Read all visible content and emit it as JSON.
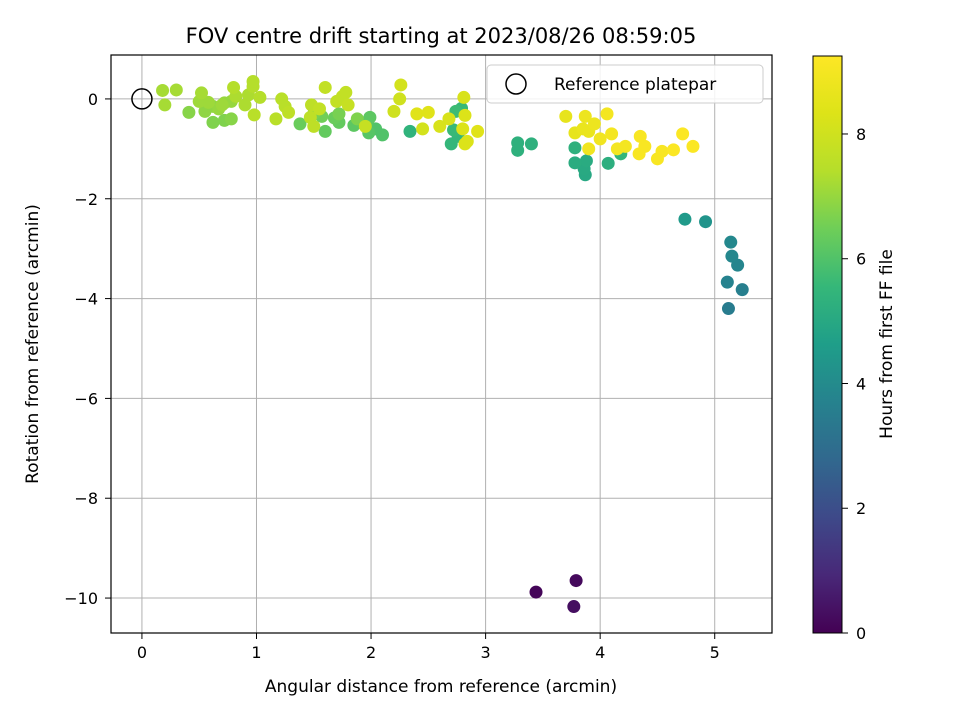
{
  "chart_data": {
    "type": "scatter",
    "title": "FOV centre drift starting at 2023/08/26 08:59:05",
    "xlabel": "Angular distance from reference (arcmin)",
    "ylabel": "Rotation from reference (arcmin)",
    "xlim": [
      -0.27,
      5.5
    ],
    "ylim": [
      -10.7,
      0.88
    ],
    "xticks": [
      0,
      1,
      2,
      3,
      4,
      5
    ],
    "yticks": [
      0,
      -2,
      -4,
      -6,
      -8,
      -10
    ],
    "xtick_labels": [
      "0",
      "1",
      "2",
      "3",
      "4",
      "5"
    ],
    "ytick_labels": [
      "0",
      "−2",
      "−4",
      "−6",
      "−8",
      "−10"
    ],
    "grid": true,
    "colormap": "viridis",
    "legend": {
      "position": "top-right",
      "entries": [
        "Reference platepar"
      ]
    },
    "reference_point": {
      "x": 0,
      "y": 0,
      "label": "Reference platepar"
    },
    "colorbar": {
      "label": "Hours from first FF file",
      "range": [
        0,
        9.25
      ],
      "ticks": [
        0,
        2,
        4,
        6,
        8
      ],
      "tick_labels": [
        "0",
        "2",
        "4",
        "6",
        "8"
      ]
    },
    "points": [
      {
        "x": 3.44,
        "y": -9.88,
        "c": 0.1
      },
      {
        "x": 3.79,
        "y": -9.65,
        "c": 0.2
      },
      {
        "x": 3.77,
        "y": -10.17,
        "c": 0.3
      },
      {
        "x": 5.12,
        "y": -4.2,
        "c": 3.5
      },
      {
        "x": 5.24,
        "y": -3.82,
        "c": 3.6
      },
      {
        "x": 5.11,
        "y": -3.67,
        "c": 3.7
      },
      {
        "x": 5.2,
        "y": -3.33,
        "c": 3.8
      },
      {
        "x": 5.15,
        "y": -3.15,
        "c": 3.85
      },
      {
        "x": 5.14,
        "y": -2.87,
        "c": 3.9
      },
      {
        "x": 4.92,
        "y": -2.46,
        "c": 4.3
      },
      {
        "x": 4.74,
        "y": -2.41,
        "c": 4.5
      },
      {
        "x": 3.87,
        "y": -1.52,
        "c": 5.0
      },
      {
        "x": 3.86,
        "y": -1.4,
        "c": 5.05
      },
      {
        "x": 3.88,
        "y": -1.24,
        "c": 5.1
      },
      {
        "x": 3.78,
        "y": -1.28,
        "c": 5.15
      },
      {
        "x": 4.07,
        "y": -1.29,
        "c": 5.2
      },
      {
        "x": 3.78,
        "y": -0.98,
        "c": 5.3
      },
      {
        "x": 3.28,
        "y": -0.88,
        "c": 5.3
      },
      {
        "x": 3.28,
        "y": -1.03,
        "c": 5.3
      },
      {
        "x": 3.4,
        "y": -0.9,
        "c": 5.3
      },
      {
        "x": 4.18,
        "y": -1.1,
        "c": 5.5
      },
      {
        "x": 2.34,
        "y": -0.65,
        "c": 5.4
      },
      {
        "x": 2.7,
        "y": -0.9,
        "c": 5.5
      },
      {
        "x": 2.76,
        "y": -0.75,
        "c": 5.5
      },
      {
        "x": 2.79,
        "y": -0.19,
        "c": 5.6
      },
      {
        "x": 2.72,
        "y": -0.62,
        "c": 5.6
      },
      {
        "x": 2.74,
        "y": -0.25,
        "c": 5.7
      },
      {
        "x": 2.1,
        "y": -0.72,
        "c": 6.0
      },
      {
        "x": 2.04,
        "y": -0.6,
        "c": 6.0
      },
      {
        "x": 1.98,
        "y": -0.68,
        "c": 6.1
      },
      {
        "x": 1.97,
        "y": -0.45,
        "c": 6.1
      },
      {
        "x": 1.99,
        "y": -0.37,
        "c": 6.2
      },
      {
        "x": 1.85,
        "y": -0.53,
        "c": 6.2
      },
      {
        "x": 1.6,
        "y": -0.65,
        "c": 6.3
      },
      {
        "x": 1.72,
        "y": -0.47,
        "c": 6.3
      },
      {
        "x": 1.68,
        "y": -0.38,
        "c": 6.4
      },
      {
        "x": 1.38,
        "y": -0.5,
        "c": 6.4
      },
      {
        "x": 1.57,
        "y": -0.35,
        "c": 6.5
      },
      {
        "x": 1.5,
        "y": -0.3,
        "c": 6.6
      },
      {
        "x": 1.72,
        "y": -0.3,
        "c": 6.6
      },
      {
        "x": 1.88,
        "y": -0.4,
        "c": 6.7
      },
      {
        "x": 0.62,
        "y": -0.47,
        "c": 6.7
      },
      {
        "x": 0.72,
        "y": -0.43,
        "c": 6.7
      },
      {
        "x": 0.78,
        "y": -0.4,
        "c": 6.8
      },
      {
        "x": 0.41,
        "y": -0.27,
        "c": 6.8
      },
      {
        "x": 0.55,
        "y": -0.25,
        "c": 6.9
      },
      {
        "x": 0.62,
        "y": -0.15,
        "c": 6.9
      },
      {
        "x": 0.67,
        "y": -0.2,
        "c": 7.0
      },
      {
        "x": 0.72,
        "y": -0.08,
        "c": 7.0
      },
      {
        "x": 0.78,
        "y": -0.05,
        "c": 7.0
      },
      {
        "x": 0.7,
        "y": -0.12,
        "c": 7.1
      },
      {
        "x": 0.58,
        "y": -0.07,
        "c": 7.1
      },
      {
        "x": 0.5,
        "y": -0.05,
        "c": 7.1
      },
      {
        "x": 0.52,
        "y": 0.12,
        "c": 7.2
      },
      {
        "x": 0.3,
        "y": 0.18,
        "c": 7.2
      },
      {
        "x": 0.18,
        "y": 0.17,
        "c": 7.2
      },
      {
        "x": 0.2,
        "y": -0.12,
        "c": 7.2
      },
      {
        "x": 0.82,
        "y": 0.05,
        "c": 7.3
      },
      {
        "x": 0.9,
        "y": -0.12,
        "c": 7.3
      },
      {
        "x": 0.93,
        "y": 0.08,
        "c": 7.3
      },
      {
        "x": 0.97,
        "y": 0.25,
        "c": 7.4
      },
      {
        "x": 0.97,
        "y": 0.35,
        "c": 7.4
      },
      {
        "x": 0.8,
        "y": 0.23,
        "c": 7.4
      },
      {
        "x": 1.03,
        "y": 0.03,
        "c": 7.4
      },
      {
        "x": 0.98,
        "y": -0.32,
        "c": 7.5
      },
      {
        "x": 1.17,
        "y": -0.4,
        "c": 7.5
      },
      {
        "x": 1.22,
        "y": 0.0,
        "c": 7.5
      },
      {
        "x": 1.25,
        "y": -0.15,
        "c": 7.5
      },
      {
        "x": 1.28,
        "y": -0.27,
        "c": 7.6
      },
      {
        "x": 1.47,
        "y": -0.37,
        "c": 7.6
      },
      {
        "x": 1.5,
        "y": -0.55,
        "c": 7.6
      },
      {
        "x": 1.48,
        "y": -0.12,
        "c": 7.6
      },
      {
        "x": 1.55,
        "y": -0.2,
        "c": 7.7
      },
      {
        "x": 1.6,
        "y": 0.23,
        "c": 7.7
      },
      {
        "x": 1.7,
        "y": -0.05,
        "c": 7.7
      },
      {
        "x": 1.75,
        "y": 0.05,
        "c": 7.7
      },
      {
        "x": 1.78,
        "y": 0.13,
        "c": 7.7
      },
      {
        "x": 1.8,
        "y": -0.12,
        "c": 7.8
      },
      {
        "x": 1.95,
        "y": -0.55,
        "c": 7.8
      },
      {
        "x": 2.2,
        "y": -0.25,
        "c": 8.0
      },
      {
        "x": 2.25,
        "y": 0.0,
        "c": 8.0
      },
      {
        "x": 2.26,
        "y": 0.28,
        "c": 8.1
      },
      {
        "x": 2.45,
        "y": -0.6,
        "c": 8.1
      },
      {
        "x": 2.6,
        "y": -0.55,
        "c": 8.2
      },
      {
        "x": 2.68,
        "y": -0.4,
        "c": 8.2
      },
      {
        "x": 2.81,
        "y": 0.03,
        "c": 8.2
      },
      {
        "x": 2.82,
        "y": -0.33,
        "c": 8.3
      },
      {
        "x": 2.8,
        "y": -0.6,
        "c": 8.3
      },
      {
        "x": 2.84,
        "y": -0.85,
        "c": 8.3
      },
      {
        "x": 2.82,
        "y": -0.9,
        "c": 8.3
      },
      {
        "x": 2.93,
        "y": -0.65,
        "c": 8.4
      },
      {
        "x": 2.4,
        "y": -0.3,
        "c": 8.4
      },
      {
        "x": 2.5,
        "y": -0.27,
        "c": 8.4
      },
      {
        "x": 3.7,
        "y": -0.35,
        "c": 8.6
      },
      {
        "x": 3.78,
        "y": -0.68,
        "c": 8.6
      },
      {
        "x": 3.85,
        "y": -0.6,
        "c": 8.7
      },
      {
        "x": 3.9,
        "y": -0.65,
        "c": 8.7
      },
      {
        "x": 3.87,
        "y": -0.35,
        "c": 8.8
      },
      {
        "x": 3.95,
        "y": -0.5,
        "c": 8.8
      },
      {
        "x": 3.9,
        "y": -1.0,
        "c": 8.9
      },
      {
        "x": 4.0,
        "y": -0.8,
        "c": 8.9
      },
      {
        "x": 4.06,
        "y": -0.3,
        "c": 9.0
      },
      {
        "x": 4.1,
        "y": -0.7,
        "c": 9.0
      },
      {
        "x": 4.15,
        "y": -1.0,
        "c": 9.0
      },
      {
        "x": 4.22,
        "y": -0.95,
        "c": 9.0
      },
      {
        "x": 4.34,
        "y": -1.1,
        "c": 9.1
      },
      {
        "x": 4.35,
        "y": -0.75,
        "c": 9.1
      },
      {
        "x": 4.39,
        "y": -0.95,
        "c": 9.1
      },
      {
        "x": 4.5,
        "y": -1.2,
        "c": 9.1
      },
      {
        "x": 4.54,
        "y": -1.05,
        "c": 9.1
      },
      {
        "x": 4.64,
        "y": -1.02,
        "c": 9.2
      },
      {
        "x": 4.72,
        "y": -0.7,
        "c": 9.2
      },
      {
        "x": 4.81,
        "y": -0.95,
        "c": 9.2
      }
    ]
  }
}
